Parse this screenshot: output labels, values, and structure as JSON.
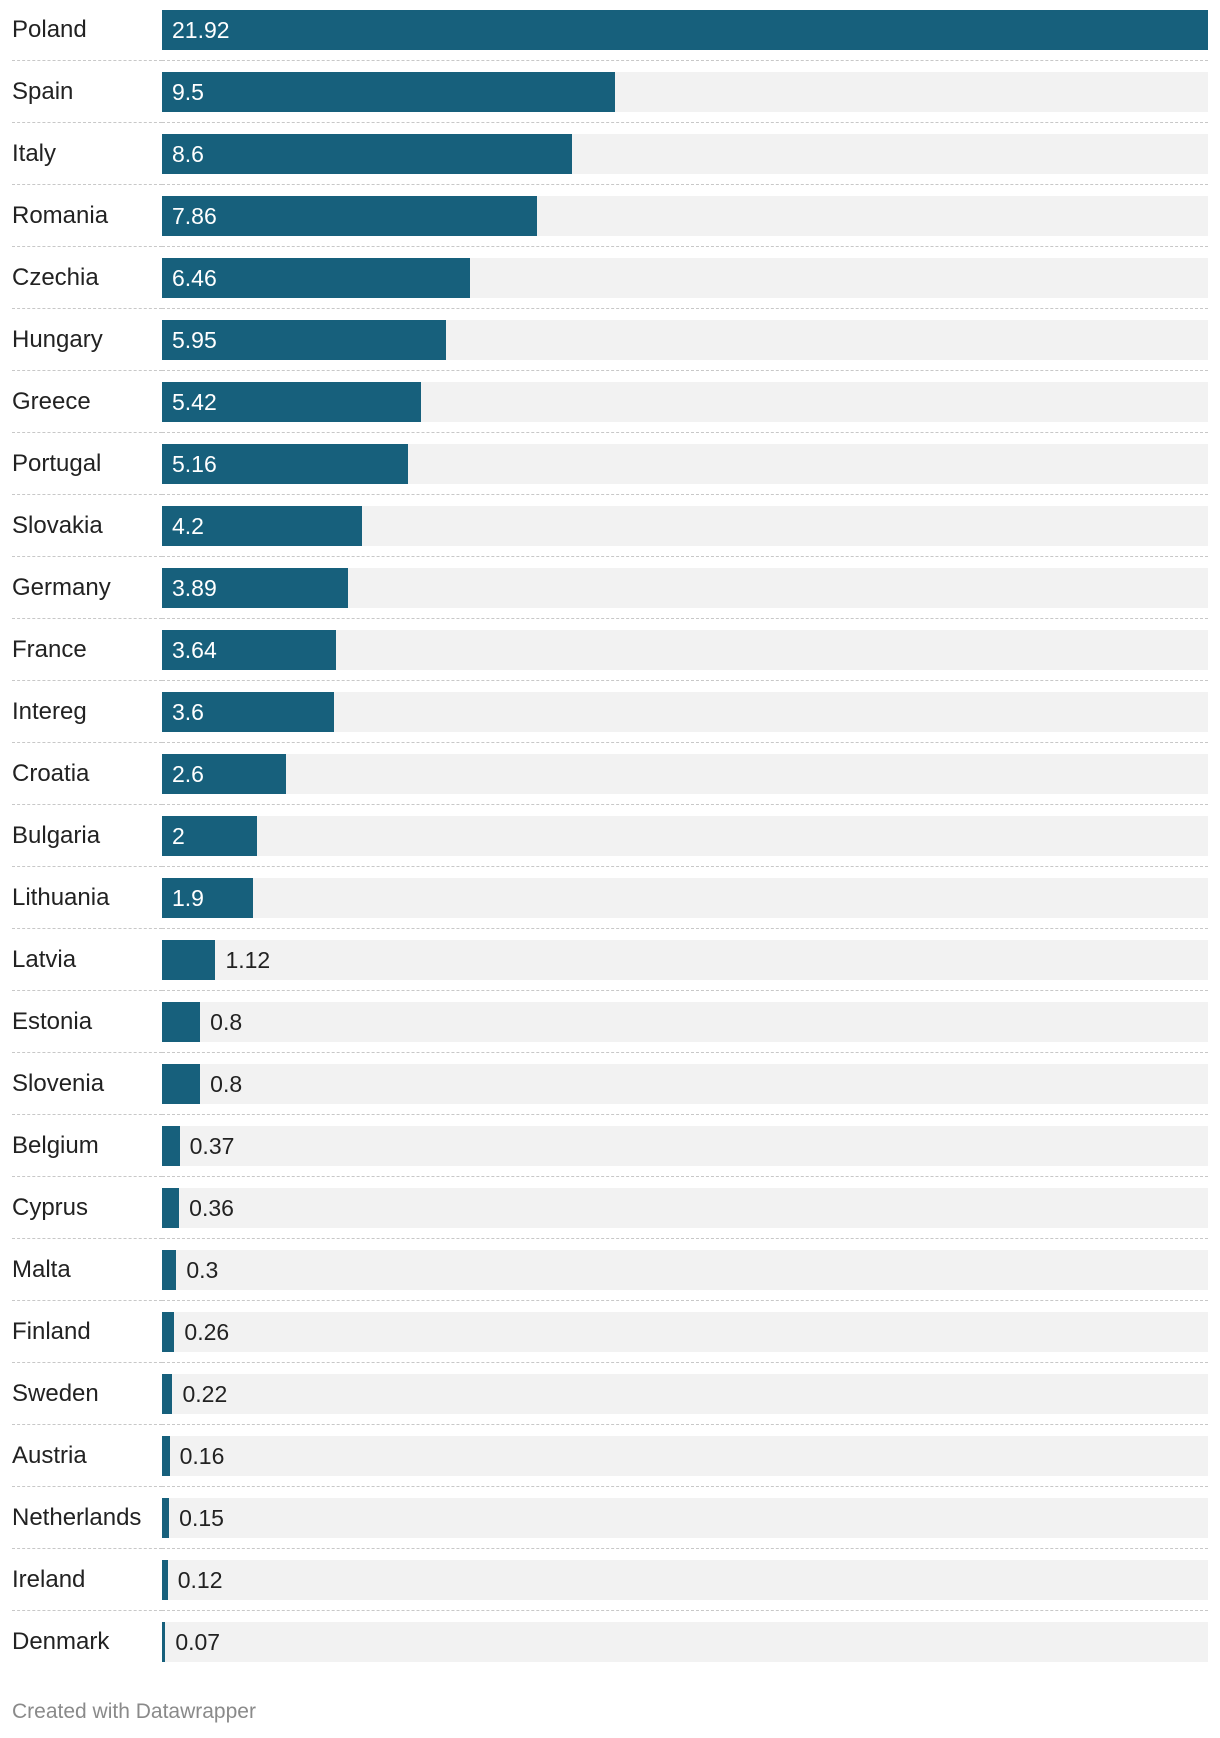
{
  "chart_data": {
    "type": "bar",
    "orientation": "horizontal",
    "categories": [
      "Poland",
      "Spain",
      "Italy",
      "Romania",
      "Czechia",
      "Hungary",
      "Greece",
      "Portugal",
      "Slovakia",
      "Germany",
      "France",
      "Intereg",
      "Croatia",
      "Bulgaria",
      "Lithuania",
      "Latvia",
      "Estonia",
      "Slovenia",
      "Belgium",
      "Cyprus",
      "Malta",
      "Finland",
      "Sweden",
      "Austria",
      "Netherlands",
      "Ireland",
      "Denmark"
    ],
    "values": [
      21.92,
      9.5,
      8.6,
      7.86,
      6.46,
      5.95,
      5.42,
      5.16,
      4.2,
      3.89,
      3.64,
      3.6,
      2.6,
      2,
      1.9,
      1.12,
      0.8,
      0.8,
      0.37,
      0.36,
      0.3,
      0.26,
      0.22,
      0.16,
      0.15,
      0.12,
      0.07
    ],
    "value_labels": [
      "21.92",
      "9.5",
      "8.6",
      "7.86",
      "6.46",
      "5.95",
      "5.42",
      "5.16",
      "4.2",
      "3.89",
      "3.64",
      "3.6",
      "2.6",
      "2",
      "1.9",
      "1.12",
      "0.8",
      "0.8",
      "0.37",
      "0.36",
      "0.3",
      "0.26",
      "0.22",
      "0.16",
      "0.15",
      "0.12",
      "0.07"
    ],
    "xlim": [
      0,
      21.92
    ],
    "bar_color": "#17607c",
    "track_color": "#f2f2f2",
    "label_inside_color": "#ffffff",
    "label_outside_color": "#222222",
    "grid": false,
    "legend": false
  },
  "footer": {
    "credit": "Created with Datawrapper"
  }
}
